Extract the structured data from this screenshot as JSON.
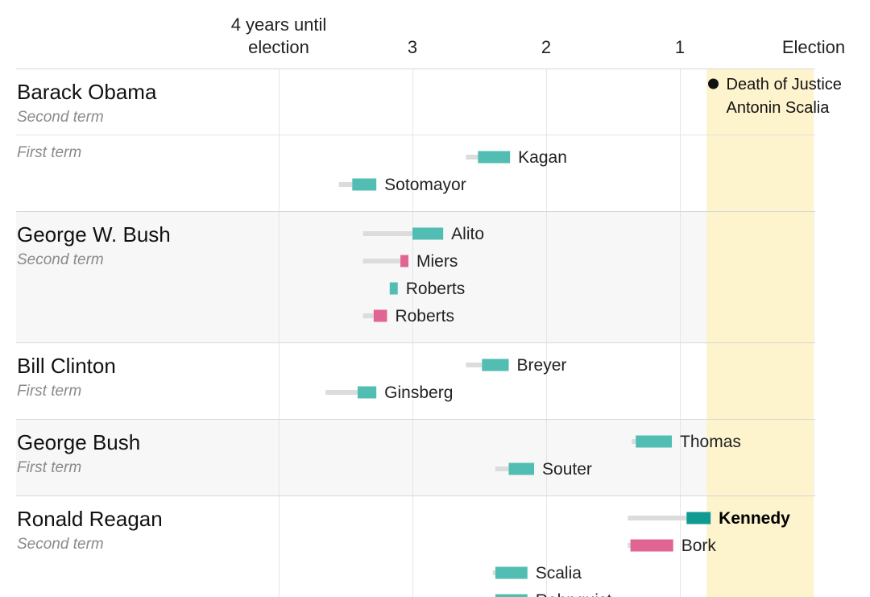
{
  "chart_data": {
    "type": "bar",
    "title": "",
    "xlabel": "",
    "ylabel": "",
    "x_axis": {
      "unit": "years until election",
      "xlim": [
        4.5,
        0
      ],
      "ticks": [
        {
          "value": 3,
          "label": "3"
        },
        {
          "value": 2,
          "label": "2"
        },
        {
          "value": 1,
          "label": "1"
        },
        {
          "value": 0,
          "label": "Election"
        }
      ],
      "first_tick_lines": [
        "4 years until",
        "election"
      ]
    },
    "grid": true,
    "colors": {
      "confirmed": "#52bdb3",
      "rejected": "#e06592",
      "waiting": "#dcdcdc",
      "highlight": "#0f9a92",
      "election_band": "#fdf3cc",
      "alt_row": "#f7f7f7"
    },
    "election_band": {
      "start": 0.8,
      "end": 0
    },
    "annotation": {
      "lines": [
        "Death of Justice",
        "Antonin Scalia"
      ],
      "x": 0.78
    },
    "groups": [
      {
        "president": "Barack Obama",
        "terms": [
          {
            "label": "Second term",
            "nominees": []
          },
          {
            "label": "First term",
            "nominees": [
              {
                "name": "Kagan",
                "vacancy": 2.6,
                "nominated": 2.51,
                "resolved": 2.27,
                "outcome": "confirmed"
              },
              {
                "name": "Sotomayor",
                "vacancy": 3.55,
                "nominated": 3.45,
                "resolved": 3.27,
                "outcome": "confirmed"
              }
            ]
          }
        ]
      },
      {
        "president": "George W. Bush",
        "terms": [
          {
            "label": "Second term",
            "nominees": [
              {
                "name": "Alito",
                "vacancy": 3.37,
                "nominated": 3.0,
                "resolved": 2.77,
                "outcome": "confirmed"
              },
              {
                "name": "Miers",
                "vacancy": 3.37,
                "nominated": 3.09,
                "resolved": 3.03,
                "outcome": "withdrawn"
              },
              {
                "name": "Roberts",
                "vacancy": 3.17,
                "nominated": 3.17,
                "resolved": 3.11,
                "outcome": "confirmed"
              },
              {
                "name": "Roberts",
                "vacancy": 3.37,
                "nominated": 3.29,
                "resolved": 3.19,
                "outcome": "withdrawn"
              }
            ]
          }
        ]
      },
      {
        "president": "Bill Clinton",
        "terms": [
          {
            "label": "First term",
            "nominees": [
              {
                "name": "Breyer",
                "vacancy": 2.6,
                "nominated": 2.48,
                "resolved": 2.28,
                "outcome": "confirmed"
              },
              {
                "name": "Ginsberg",
                "vacancy": 3.65,
                "nominated": 3.41,
                "resolved": 3.27,
                "outcome": "confirmed"
              }
            ]
          }
        ]
      },
      {
        "president": "George Bush",
        "terms": [
          {
            "label": "First term",
            "nominees": [
              {
                "name": "Thomas",
                "vacancy": 1.36,
                "nominated": 1.33,
                "resolved": 1.06,
                "outcome": "confirmed"
              },
              {
                "name": "Souter",
                "vacancy": 2.38,
                "nominated": 2.28,
                "resolved": 2.09,
                "outcome": "confirmed"
              }
            ]
          }
        ]
      },
      {
        "president": "Ronald Reagan",
        "terms": [
          {
            "label": "Second term",
            "nominees": [
              {
                "name": "Kennedy",
                "vacancy": 1.39,
                "nominated": 0.95,
                "resolved": 0.77,
                "outcome": "confirmed",
                "highlight": true
              },
              {
                "name": "Bork",
                "vacancy": 1.39,
                "nominated": 1.37,
                "resolved": 1.05,
                "outcome": "rejected"
              },
              {
                "name": "Scalia",
                "vacancy": 2.4,
                "nominated": 2.38,
                "resolved": 2.14,
                "outcome": "confirmed"
              },
              {
                "name": "Rehnquist",
                "vacancy": 2.4,
                "nominated": 2.38,
                "resolved": 2.14,
                "outcome": "confirmed"
              }
            ]
          }
        ]
      }
    ]
  }
}
